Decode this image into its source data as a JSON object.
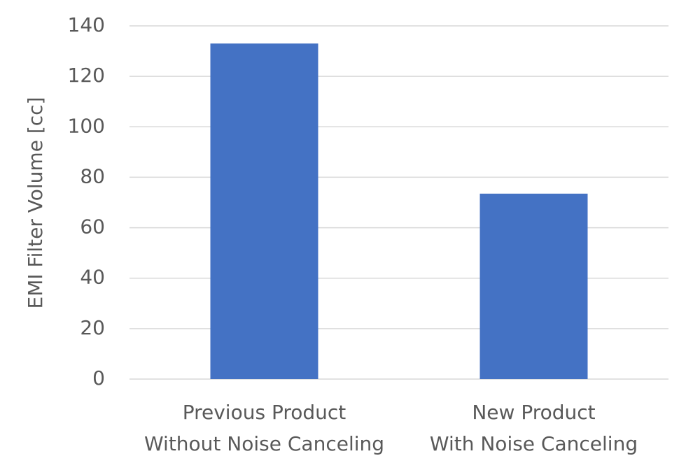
{
  "chart_data": {
    "type": "bar",
    "y_label": "EMI Filter Volume [cc]",
    "categories": [
      [
        "Previous Product",
        "Without Noise Canceling"
      ],
      [
        "New Product",
        "With Noise Canceling"
      ]
    ],
    "values": [
      133,
      73.5
    ],
    "color": "#4472c4",
    "ylim": [
      0,
      140
    ],
    "yticks": [
      0,
      20,
      40,
      60,
      80,
      100,
      120,
      140
    ],
    "grid": true
  }
}
